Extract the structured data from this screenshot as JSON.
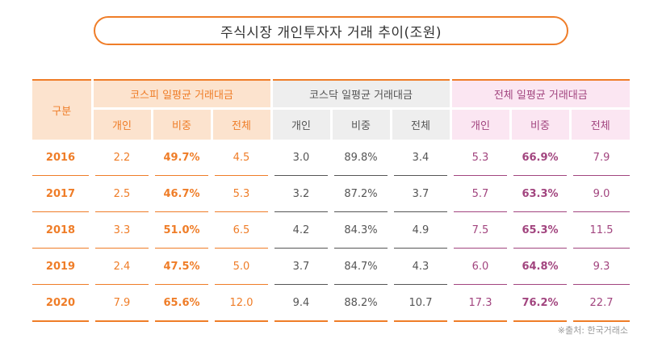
{
  "title": "주식시장 개인투자자 거래 추이(조원)",
  "header": {
    "gubun": "구분",
    "groups": [
      {
        "label": "코스피 일평균 거래대금",
        "cols": [
          "개인",
          "비중",
          "전체"
        ]
      },
      {
        "label": "코스닥 일평균 거래대금",
        "cols": [
          "개인",
          "비중",
          "전체"
        ]
      },
      {
        "label": "전체 일평균 거래대금",
        "cols": [
          "개인",
          "비중",
          "전체"
        ]
      }
    ]
  },
  "rows": [
    {
      "year": "2016",
      "values": [
        "2.2",
        "49.7%",
        "4.5",
        "3.0",
        "89.8%",
        "3.4",
        "5.3",
        "66.9%",
        "7.9"
      ]
    },
    {
      "year": "2017",
      "values": [
        "2.5",
        "46.7%",
        "5.3",
        "3.2",
        "87.2%",
        "3.7",
        "5.7",
        "63.3%",
        "9.0"
      ]
    },
    {
      "year": "2018",
      "values": [
        "3.3",
        "51.0%",
        "6.5",
        "4.2",
        "84.3%",
        "4.9",
        "7.5",
        "65.3%",
        "11.5"
      ]
    },
    {
      "year": "2019",
      "values": [
        "2.4",
        "47.5%",
        "5.0",
        "3.7",
        "84.7%",
        "4.3",
        "6.0",
        "64.8%",
        "9.3"
      ]
    },
    {
      "year": "2020",
      "values": [
        "7.9",
        "65.6%",
        "12.0",
        "9.4",
        "88.2%",
        "10.7",
        "17.3",
        "76.2%",
        "22.7"
      ]
    }
  ],
  "source": "※출처: 한국거래소",
  "colors": {
    "kospi": "#ef7d28",
    "kosdaq": "#555555",
    "total": "#a2457f"
  }
}
